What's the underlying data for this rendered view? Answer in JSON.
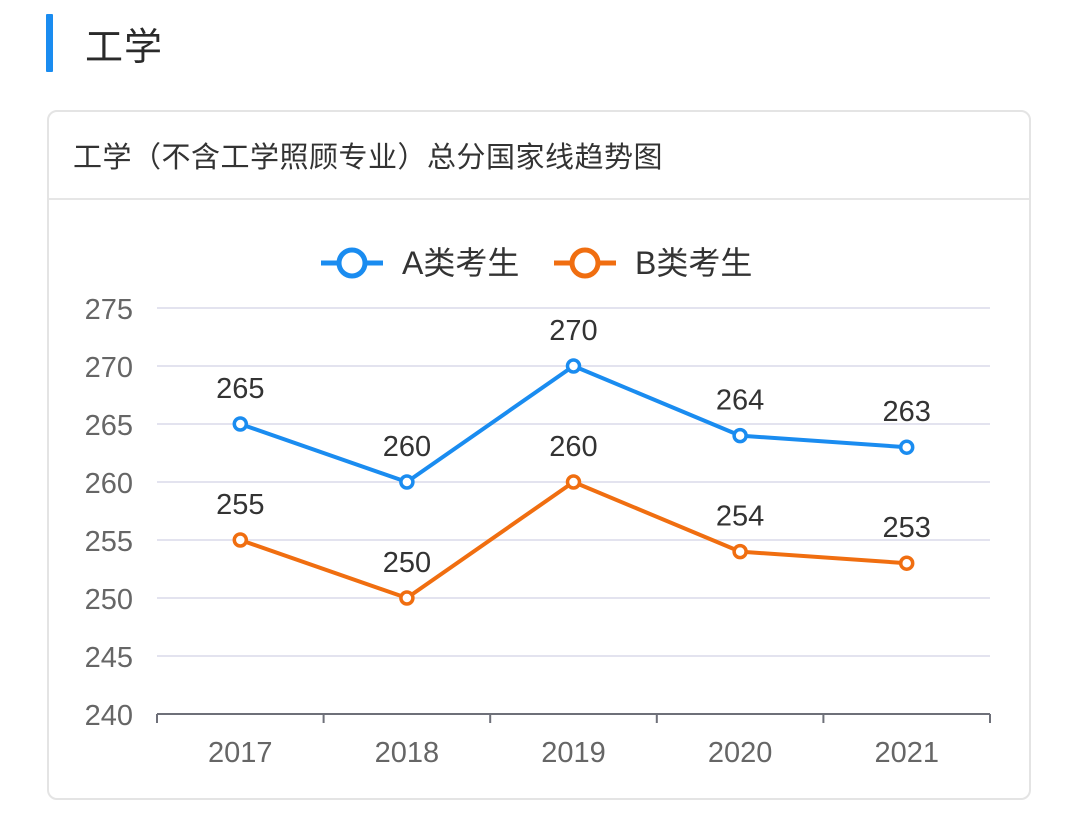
{
  "section": {
    "title": "工学"
  },
  "card": {
    "title": "工学（不含工学照顾专业）总分国家线趋势图"
  },
  "chart_data": {
    "type": "line",
    "categories": [
      "2017",
      "2018",
      "2019",
      "2020",
      "2021"
    ],
    "series": [
      {
        "name": "A类考生",
        "color": "#1a8cf0",
        "values": [
          265,
          260,
          270,
          264,
          263
        ]
      },
      {
        "name": "B类考生",
        "color": "#f06e10",
        "values": [
          255,
          250,
          260,
          254,
          253
        ]
      }
    ],
    "ylim": [
      240,
      275
    ],
    "yticks": [
      240,
      245,
      250,
      255,
      260,
      265,
      270,
      275
    ],
    "grid": true,
    "legend": "top-center",
    "data_labels": true
  }
}
